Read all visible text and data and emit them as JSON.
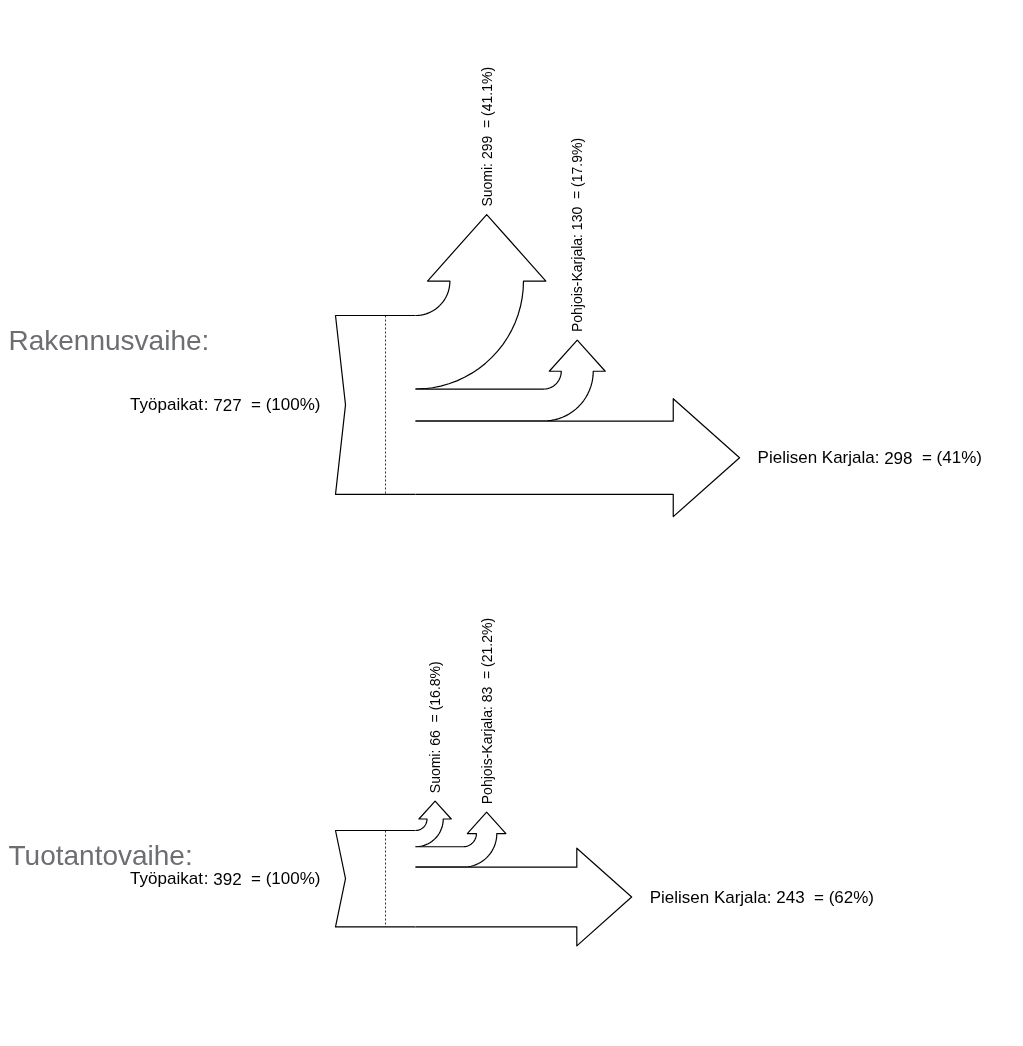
{
  "chart_data": [
    {
      "type": "other",
      "title": "Rakennusvaihe:",
      "categories": [
        "Työpaikat",
        "Suomi",
        "Pohjois-Karjala",
        "Pielisen Karjala"
      ],
      "values": [
        727,
        299,
        130,
        298
      ],
      "data_labels": true,
      "annotations": [
        ":",
        "= (100%)",
        "= (41.1%)",
        "= (17.9%)",
        "= (41%)"
      ]
    },
    {
      "type": "other",
      "title": "Tuotantovaihe:",
      "categories": [
        "Työpaikat",
        "Suomi",
        "Pohjois-Karjala",
        "Pielisen Karjala"
      ],
      "values": [
        392,
        66,
        83,
        243
      ],
      "data_labels": true,
      "annotations": [
        ":",
        "= (100%)",
        "= (16.8%)",
        "= (21.2%)",
        "= (62%)"
      ]
    }
  ]
}
